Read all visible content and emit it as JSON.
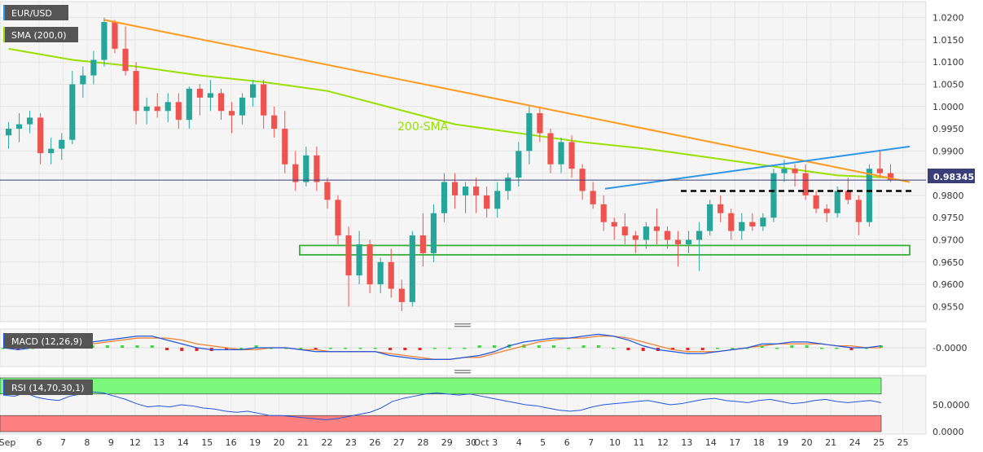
{
  "chart_data": {
    "type": "candlestick",
    "symbol": "EUR/USD",
    "last_price": "0.98345",
    "colors": {
      "bull": "#26a69a",
      "bear": "#ef5350",
      "sma": "#99e000",
      "downtrend": "#ff9a1f",
      "uptrend": "#2f96e6",
      "support_box": "#37b037",
      "resistance_dotted": "#000000",
      "macd_line": "#2255dd",
      "signal_line": "#f08030",
      "hist_pos": "#33dd33",
      "hist_neg": "#ee2222",
      "rsi_line": "#2255dd",
      "overbought_zone": "#7cf97c",
      "oversold_zone": "#ff8080",
      "tag_bg": "#555555"
    },
    "x_axis": {
      "month_labels": [
        {
          "text": "Sep",
          "before_day_index": 0
        },
        {
          "text": "Oct",
          "before_day_index": 23
        }
      ],
      "day_labels": [
        "6",
        "7",
        "8",
        "9",
        "12",
        "13",
        "14",
        "15",
        "16",
        "19",
        "20",
        "21",
        "22",
        "23",
        "26",
        "27",
        "28",
        "29",
        "30",
        "3",
        "4",
        "5",
        "6",
        "7",
        "10",
        "11",
        "12",
        "13",
        "14",
        "17",
        "18",
        "19",
        "20",
        "21",
        "24",
        "25",
        "25"
      ]
    },
    "price_panel": {
      "legend": [
        "EUR/USD",
        "SMA (200,0)"
      ],
      "ylim": [
        0.9525,
        1.0225
      ],
      "yticks": [
        "1.0200",
        "1.0150",
        "1.0100",
        "1.0050",
        "1.0000",
        "0.9950",
        "0.9900",
        "0.9850",
        "0.9800",
        "0.9750",
        "0.9700",
        "0.9650",
        "0.9600",
        "0.9550"
      ],
      "annotation": "200-SMA",
      "candles": [
        [
          0.9935,
          0.9965,
          0.9905,
          0.995
        ],
        [
          0.995,
          0.9985,
          0.992,
          0.996
        ],
        [
          0.996,
          0.999,
          0.994,
          0.9975
        ],
        [
          0.9975,
          0.9985,
          0.987,
          0.9895
        ],
        [
          0.9895,
          0.993,
          0.987,
          0.9905
        ],
        [
          0.9905,
          0.994,
          0.988,
          0.9925
        ],
        [
          0.9925,
          1.008,
          0.9915,
          1.005
        ],
        [
          1.005,
          1.009,
          1.002,
          1.007
        ],
        [
          1.007,
          1.0125,
          1.005,
          1.0105
        ],
        [
          1.0105,
          1.02,
          1.009,
          1.019
        ],
        [
          1.019,
          1.0195,
          1.012,
          1.013
        ],
        [
          1.013,
          1.018,
          1.007,
          1.008
        ],
        [
          1.008,
          1.01,
          0.996,
          0.999
        ],
        [
          0.999,
          1.002,
          0.996,
          1.0
        ],
        [
          1.0,
          1.003,
          0.9975,
          0.999
        ],
        [
          0.999,
          1.003,
          0.9965,
          1.001
        ],
        [
          1.001,
          1.003,
          0.995,
          0.997
        ],
        [
          0.997,
          1.0045,
          0.995,
          1.004
        ],
        [
          1.004,
          1.005,
          0.998,
          1.002
        ],
        [
          1.002,
          1.006,
          0.999,
          1.003
        ],
        [
          1.003,
          1.004,
          0.997,
          0.999
        ],
        [
          0.999,
          1.001,
          0.994,
          0.998
        ],
        [
          0.998,
          1.003,
          0.996,
          1.002
        ],
        [
          1.002,
          1.006,
          1.0,
          1.005
        ],
        [
          1.005,
          1.006,
          0.995,
          0.998
        ],
        [
          0.998,
          1.0,
          0.993,
          0.995
        ],
        [
          0.995,
          0.999,
          0.985,
          0.987
        ],
        [
          0.987,
          0.99,
          0.981,
          0.983
        ],
        [
          0.983,
          0.991,
          0.982,
          0.989
        ],
        [
          0.989,
          0.991,
          0.981,
          0.983
        ],
        [
          0.983,
          0.984,
          0.977,
          0.979
        ],
        [
          0.979,
          0.98,
          0.969,
          0.971
        ],
        [
          0.971,
          0.973,
          0.955,
          0.962
        ],
        [
          0.962,
          0.972,
          0.96,
          0.969
        ],
        [
          0.969,
          0.97,
          0.958,
          0.96
        ],
        [
          0.96,
          0.966,
          0.958,
          0.965
        ],
        [
          0.965,
          0.968,
          0.957,
          0.959
        ],
        [
          0.959,
          0.961,
          0.954,
          0.956
        ],
        [
          0.956,
          0.972,
          0.955,
          0.971
        ],
        [
          0.971,
          0.976,
          0.964,
          0.967
        ],
        [
          0.967,
          0.978,
          0.965,
          0.976
        ],
        [
          0.976,
          0.985,
          0.974,
          0.983
        ],
        [
          0.983,
          0.985,
          0.977,
          0.98
        ],
        [
          0.98,
          0.983,
          0.976,
          0.982
        ],
        [
          0.982,
          0.984,
          0.976,
          0.98
        ],
        [
          0.98,
          0.982,
          0.975,
          0.977
        ],
        [
          0.977,
          0.983,
          0.975,
          0.981
        ],
        [
          0.981,
          0.985,
          0.979,
          0.984
        ],
        [
          0.984,
          0.992,
          0.982,
          0.99
        ],
        [
          0.99,
          1.0,
          0.987,
          0.9985
        ],
        [
          0.9985,
          1.0,
          0.992,
          0.994
        ],
        [
          0.994,
          0.995,
          0.985,
          0.987
        ],
        [
          0.987,
          0.993,
          0.985,
          0.992
        ],
        [
          0.992,
          0.9935,
          0.984,
          0.986
        ],
        [
          0.986,
          0.987,
          0.979,
          0.981
        ],
        [
          0.981,
          0.983,
          0.977,
          0.978
        ],
        [
          0.978,
          0.98,
          0.972,
          0.974
        ],
        [
          0.974,
          0.975,
          0.97,
          0.973
        ],
        [
          0.973,
          0.976,
          0.969,
          0.971
        ],
        [
          0.971,
          0.972,
          0.967,
          0.97
        ],
        [
          0.97,
          0.974,
          0.968,
          0.973
        ],
        [
          0.973,
          0.977,
          0.969,
          0.972
        ],
        [
          0.972,
          0.973,
          0.968,
          0.97
        ],
        [
          0.97,
          0.972,
          0.964,
          0.969
        ],
        [
          0.969,
          0.972,
          0.967,
          0.97
        ],
        [
          0.97,
          0.974,
          0.963,
          0.972
        ],
        [
          0.972,
          0.979,
          0.971,
          0.978
        ],
        [
          0.978,
          0.98,
          0.974,
          0.976
        ],
        [
          0.976,
          0.977,
          0.97,
          0.972
        ],
        [
          0.972,
          0.976,
          0.97,
          0.974
        ],
        [
          0.974,
          0.976,
          0.972,
          0.973
        ],
        [
          0.973,
          0.976,
          0.972,
          0.975
        ],
        [
          0.975,
          0.986,
          0.974,
          0.985
        ],
        [
          0.985,
          0.988,
          0.983,
          0.986
        ],
        [
          0.986,
          0.987,
          0.982,
          0.985
        ],
        [
          0.985,
          0.987,
          0.979,
          0.98
        ],
        [
          0.98,
          0.981,
          0.976,
          0.977
        ],
        [
          0.977,
          0.978,
          0.974,
          0.976
        ],
        [
          0.976,
          0.982,
          0.975,
          0.981
        ],
        [
          0.981,
          0.984,
          0.978,
          0.979
        ],
        [
          0.979,
          0.98,
          0.971,
          0.974
        ],
        [
          0.974,
          0.987,
          0.973,
          0.986
        ],
        [
          0.986,
          0.99,
          0.984,
          0.985
        ],
        [
          0.985,
          0.987,
          0.983,
          0.9835
        ]
      ],
      "sma_200": [
        [
          0,
          1.013
        ],
        [
          6,
          1.0105
        ],
        [
          12,
          1.009
        ],
        [
          18,
          1.007
        ],
        [
          24,
          1.0055
        ],
        [
          30,
          1.0035
        ],
        [
          34,
          1.001
        ],
        [
          38,
          0.9985
        ],
        [
          42,
          0.996
        ],
        [
          48,
          0.994
        ],
        [
          54,
          0.992
        ],
        [
          60,
          0.9905
        ],
        [
          66,
          0.9885
        ],
        [
          72,
          0.9865
        ],
        [
          78,
          0.9845
        ],
        [
          83,
          0.984
        ]
      ],
      "downtrend_line": [
        [
          9,
          1.0195
        ],
        [
          83,
          0.983
        ]
      ],
      "uptrend_line": [
        [
          52,
          0.9815
        ],
        [
          83,
          0.991
        ]
      ],
      "resistance_level": {
        "from": 59,
        "to": 83,
        "value": 0.981
      },
      "support_zone": {
        "from": 26,
        "to": 83,
        "low": 0.967,
        "high": 0.968
      }
    },
    "macd_panel": {
      "legend": "MACD (12,26,9)",
      "ylim": [
        -0.008,
        0.008
      ],
      "yticks": [
        "-0.0000"
      ],
      "macd": [
        0.0,
        -0.001,
        0.0,
        0.001,
        0.001,
        0.002,
        0.003,
        0.004,
        0.005,
        0.006,
        0.006,
        0.004,
        0.002,
        0.0,
        -0.001,
        -0.001,
        -0.001,
        0.0,
        0.0,
        0.0,
        -0.001,
        -0.002,
        -0.002,
        -0.002,
        -0.002,
        -0.002,
        -0.004,
        -0.005,
        -0.006,
        -0.006,
        -0.006,
        -0.005,
        -0.004,
        -0.002,
        0.001,
        0.003,
        0.004,
        0.005,
        0.005,
        0.006,
        0.007,
        0.006,
        0.004,
        0.001,
        -0.001,
        -0.002,
        -0.003,
        -0.003,
        -0.002,
        -0.001,
        0.0,
        0.002,
        0.002,
        0.003,
        0.003,
        0.002,
        0.001,
        0.0,
        0.0,
        0.001
      ],
      "signal": [
        0.0,
        0.0,
        0.0,
        0.0,
        0.001,
        0.001,
        0.002,
        0.003,
        0.004,
        0.005,
        0.005,
        0.005,
        0.004,
        0.002,
        0.001,
        0.0,
        -0.001,
        -0.001,
        0.0,
        0.0,
        -0.001,
        -0.001,
        -0.002,
        -0.002,
        -0.002,
        -0.002,
        -0.003,
        -0.004,
        -0.005,
        -0.006,
        -0.006,
        -0.005,
        -0.005,
        -0.003,
        -0.001,
        0.001,
        0.003,
        0.004,
        0.005,
        0.005,
        0.006,
        0.006,
        0.005,
        0.003,
        0.001,
        -0.001,
        -0.002,
        -0.002,
        -0.002,
        -0.001,
        0.0,
        0.001,
        0.002,
        0.002,
        0.002,
        0.002,
        0.001,
        0.001,
        0.0,
        0.0
      ]
    },
    "rsi_panel": {
      "legend": "RSI (14,70,30,1)",
      "ylim": [
        0,
        100
      ],
      "yticks": [
        "50.0000",
        "0.0000"
      ],
      "overbought": 70,
      "oversold": 30,
      "values": [
        68,
        66,
        72,
        64,
        60,
        58,
        66,
        70,
        74,
        72,
        66,
        60,
        52,
        46,
        48,
        46,
        50,
        48,
        44,
        42,
        38,
        36,
        38,
        34,
        30,
        30,
        28,
        26,
        24,
        22,
        24,
        28,
        32,
        36,
        44,
        56,
        62,
        66,
        70,
        72,
        70,
        68,
        70,
        66,
        62,
        58,
        54,
        50,
        48,
        44,
        40,
        38,
        40,
        46,
        50,
        52,
        54,
        56,
        58,
        54,
        50,
        52,
        56,
        60,
        62,
        58,
        56,
        54,
        58,
        60,
        56,
        52,
        54,
        58,
        60,
        56,
        54,
        56,
        58,
        54
      ]
    }
  }
}
